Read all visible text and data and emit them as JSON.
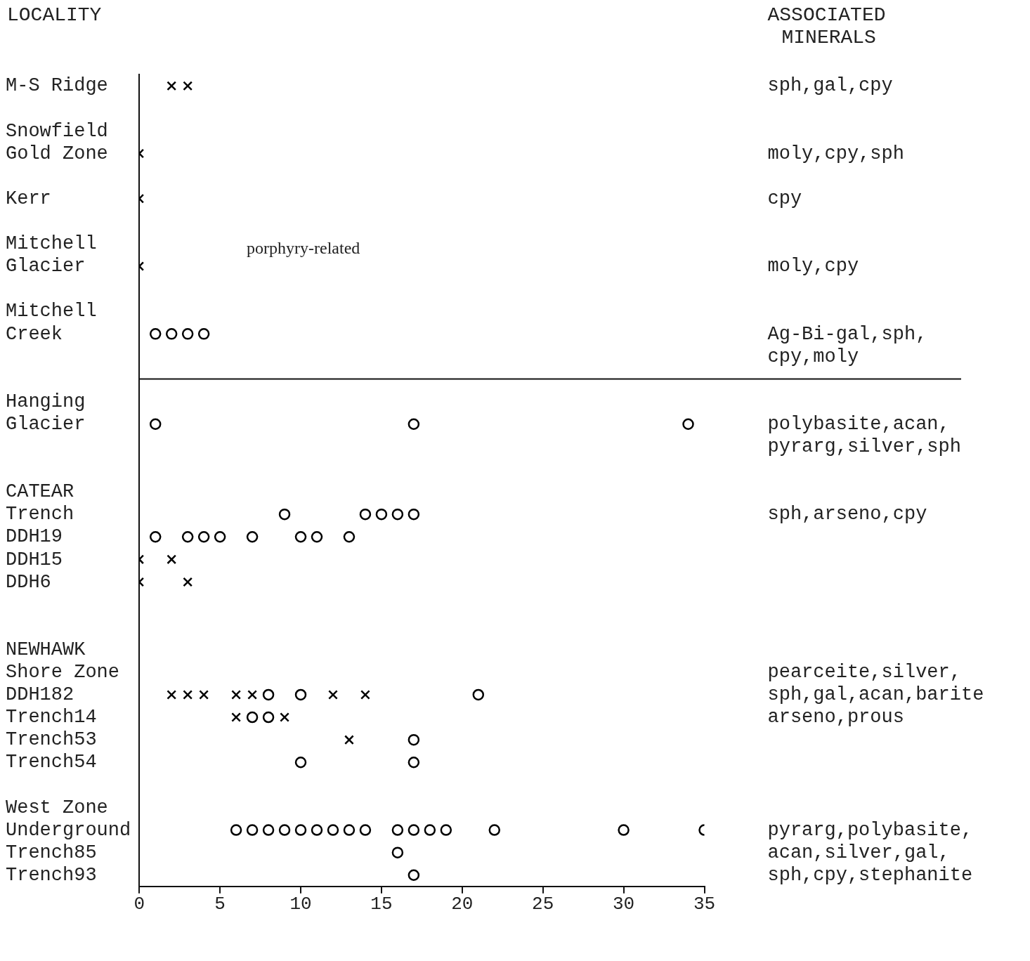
{
  "chart_data": {
    "type": "scatter",
    "orientation": "horizontal",
    "ylabel": "LOCALITY",
    "y2label": "ASSOCIATED MINERALS",
    "xlim": [
      0,
      35
    ],
    "xticks": [
      0,
      5,
      10,
      15,
      20,
      25,
      30,
      35
    ],
    "categories": [
      "M-S Ridge",
      null,
      "Snowfield",
      "Gold Zone",
      null,
      "Kerr",
      null,
      "Mitchell",
      "Glacier",
      null,
      "Mitchell",
      "Creek",
      null,
      null,
      "Hanging",
      "Glacier",
      null,
      null,
      "CATEAR",
      "Trench",
      "DDH19",
      "DDH15",
      "DDH6",
      null,
      null,
      "NEWHAWK",
      "Shore Zone",
      "DDH182",
      "Trench14",
      "Trench53",
      "Trench54",
      null,
      "West Zone",
      "Underground",
      "Trench85",
      "Trench93"
    ],
    "y2_categories": [
      "sph,gal,cpy",
      null,
      null,
      "moly,cpy,sph",
      null,
      "cpy",
      null,
      null,
      "moly,cpy",
      null,
      null,
      "Ag-Bi-gal,sph,",
      "cpy,moly",
      null,
      null,
      "polybasite,acan,",
      "pyrarg,silver,sph",
      null,
      null,
      "sph,arseno,cpy",
      null,
      null,
      null,
      null,
      null,
      null,
      "pearceite,silver,",
      "sph,gal,acan,barite",
      "arseno,prous",
      null,
      null,
      null,
      null,
      "pyrarg,polybasite,",
      "acan,silver,gal,",
      "sph,cpy,stephanite"
    ],
    "grid": false,
    "legend": false,
    "annotations": [
      "porphyry-related"
    ],
    "series": [
      {
        "color": "#000000",
        "marker": "cross",
        "values": [
          2,
          null,
          null,
          0,
          null,
          0,
          null,
          null,
          0,
          null,
          null,
          null,
          null,
          null,
          null,
          null,
          null,
          null,
          null,
          null,
          null,
          0,
          0,
          null,
          null,
          null,
          null,
          2,
          6,
          13,
          null,
          null,
          null,
          null,
          null,
          null
        ]
      },
      {
        "color": "#000000",
        "marker": "cross",
        "values": [
          3,
          null,
          null,
          null,
          null,
          null,
          null,
          null,
          null,
          null,
          null,
          null,
          null,
          null,
          null,
          null,
          null,
          null,
          null,
          null,
          null,
          2,
          3,
          null,
          null,
          null,
          null,
          3,
          9,
          null,
          null,
          null,
          null,
          null,
          null,
          null
        ]
      },
      {
        "color": "#000000",
        "marker": "cross",
        "values": [
          null,
          null,
          null,
          null,
          null,
          null,
          null,
          null,
          null,
          null,
          null,
          null,
          null,
          null,
          null,
          null,
          null,
          null,
          null,
          null,
          null,
          null,
          null,
          null,
          null,
          null,
          null,
          4,
          null,
          null,
          null,
          null,
          null,
          null,
          null,
          null
        ]
      },
      {
        "color": "#000000",
        "marker": "cross",
        "values": [
          null,
          null,
          null,
          null,
          null,
          null,
          null,
          null,
          null,
          null,
          null,
          null,
          null,
          null,
          null,
          null,
          null,
          null,
          null,
          null,
          null,
          null,
          null,
          null,
          null,
          null,
          null,
          6,
          null,
          null,
          null,
          null,
          null,
          null,
          null,
          null
        ]
      },
      {
        "color": "#000000",
        "marker": "cross",
        "values": [
          null,
          null,
          null,
          null,
          null,
          null,
          null,
          null,
          null,
          null,
          null,
          null,
          null,
          null,
          null,
          null,
          null,
          null,
          null,
          null,
          null,
          null,
          null,
          null,
          null,
          null,
          null,
          7,
          null,
          null,
          null,
          null,
          null,
          null,
          null,
          null
        ]
      },
      {
        "color": "#000000",
        "marker": "cross",
        "values": [
          null,
          null,
          null,
          null,
          null,
          null,
          null,
          null,
          null,
          null,
          null,
          null,
          null,
          null,
          null,
          null,
          null,
          null,
          null,
          null,
          null,
          null,
          null,
          null,
          null,
          null,
          null,
          12,
          null,
          null,
          null,
          null,
          null,
          null,
          null,
          null
        ]
      },
      {
        "color": "#000000",
        "marker": "cross",
        "values": [
          null,
          null,
          null,
          null,
          null,
          null,
          null,
          null,
          null,
          null,
          null,
          null,
          null,
          null,
          null,
          null,
          null,
          null,
          null,
          null,
          null,
          null,
          null,
          null,
          null,
          null,
          null,
          14,
          null,
          null,
          null,
          null,
          null,
          null,
          null,
          null
        ]
      },
      {
        "color": "#000000",
        "marker": "circle",
        "values": [
          null,
          null,
          null,
          null,
          null,
          null,
          null,
          null,
          null,
          null,
          null,
          1,
          null,
          null,
          null,
          1,
          null,
          null,
          null,
          9,
          1,
          null,
          null,
          null,
          null,
          null,
          null,
          8,
          7,
          17,
          10,
          null,
          null,
          6,
          16,
          17
        ]
      },
      {
        "color": "#000000",
        "marker": "circle",
        "values": [
          null,
          null,
          null,
          null,
          null,
          null,
          null,
          null,
          null,
          null,
          null,
          2,
          null,
          null,
          null,
          17,
          null,
          null,
          null,
          14,
          3,
          null,
          null,
          null,
          null,
          null,
          null,
          10,
          8,
          null,
          17,
          null,
          null,
          7,
          null,
          null
        ]
      },
      {
        "color": "#000000",
        "marker": "circle",
        "values": [
          null,
          null,
          null,
          null,
          null,
          null,
          null,
          null,
          null,
          null,
          null,
          3,
          null,
          null,
          null,
          34,
          null,
          null,
          null,
          15,
          4,
          null,
          null,
          null,
          null,
          null,
          null,
          21,
          null,
          null,
          null,
          null,
          null,
          8,
          null,
          null
        ]
      },
      {
        "color": "#000000",
        "marker": "circle",
        "values": [
          null,
          null,
          null,
          null,
          null,
          null,
          null,
          null,
          null,
          null,
          null,
          4,
          null,
          null,
          null,
          null,
          null,
          null,
          null,
          16,
          5,
          null,
          null,
          null,
          null,
          null,
          null,
          null,
          null,
          null,
          null,
          null,
          null,
          9,
          null,
          null
        ]
      },
      {
        "color": "#000000",
        "marker": "circle",
        "values": [
          null,
          null,
          null,
          null,
          null,
          null,
          null,
          null,
          null,
          null,
          null,
          null,
          null,
          null,
          null,
          null,
          null,
          null,
          null,
          17,
          7,
          null,
          null,
          null,
          null,
          null,
          null,
          null,
          null,
          null,
          null,
          null,
          null,
          10,
          null,
          null
        ]
      },
      {
        "color": "#000000",
        "marker": "circle",
        "values": [
          null,
          null,
          null,
          null,
          null,
          null,
          null,
          null,
          null,
          null,
          null,
          null,
          null,
          null,
          null,
          null,
          null,
          null,
          null,
          null,
          10,
          null,
          null,
          null,
          null,
          null,
          null,
          null,
          null,
          null,
          null,
          null,
          null,
          11,
          null,
          null
        ]
      },
      {
        "color": "#000000",
        "marker": "circle",
        "values": [
          null,
          null,
          null,
          null,
          null,
          null,
          null,
          null,
          null,
          null,
          null,
          null,
          null,
          null,
          null,
          null,
          null,
          null,
          null,
          null,
          11,
          null,
          null,
          null,
          null,
          null,
          null,
          null,
          null,
          null,
          null,
          null,
          null,
          12,
          null,
          null
        ]
      },
      {
        "color": "#000000",
        "marker": "circle",
        "values": [
          null,
          null,
          null,
          null,
          null,
          null,
          null,
          null,
          null,
          null,
          null,
          null,
          null,
          null,
          null,
          null,
          null,
          null,
          null,
          null,
          13,
          null,
          null,
          null,
          null,
          null,
          null,
          null,
          null,
          null,
          null,
          null,
          null,
          13,
          null,
          null
        ]
      },
      {
        "color": "#000000",
        "marker": "circle",
        "values": [
          null,
          null,
          null,
          null,
          null,
          null,
          null,
          null,
          null,
          null,
          null,
          null,
          null,
          null,
          null,
          null,
          null,
          null,
          null,
          null,
          null,
          null,
          null,
          null,
          null,
          null,
          null,
          null,
          null,
          null,
          null,
          null,
          null,
          14,
          null,
          null
        ]
      },
      {
        "color": "#000000",
        "marker": "circle",
        "values": [
          null,
          null,
          null,
          null,
          null,
          null,
          null,
          null,
          null,
          null,
          null,
          null,
          null,
          null,
          null,
          null,
          null,
          null,
          null,
          null,
          null,
          null,
          null,
          null,
          null,
          null,
          null,
          null,
          null,
          null,
          null,
          null,
          null,
          16,
          null,
          null
        ]
      },
      {
        "color": "#000000",
        "marker": "circle",
        "values": [
          null,
          null,
          null,
          null,
          null,
          null,
          null,
          null,
          null,
          null,
          null,
          null,
          null,
          null,
          null,
          null,
          null,
          null,
          null,
          null,
          null,
          null,
          null,
          null,
          null,
          null,
          null,
          null,
          null,
          null,
          null,
          null,
          null,
          17,
          null,
          null
        ]
      },
      {
        "color": "#000000",
        "marker": "circle",
        "values": [
          null,
          null,
          null,
          null,
          null,
          null,
          null,
          null,
          null,
          null,
          null,
          null,
          null,
          null,
          null,
          null,
          null,
          null,
          null,
          null,
          null,
          null,
          null,
          null,
          null,
          null,
          null,
          null,
          null,
          null,
          null,
          null,
          null,
          18,
          null,
          null
        ]
      },
      {
        "color": "#000000",
        "marker": "circle",
        "values": [
          null,
          null,
          null,
          null,
          null,
          null,
          null,
          null,
          null,
          null,
          null,
          null,
          null,
          null,
          null,
          null,
          null,
          null,
          null,
          null,
          null,
          null,
          null,
          null,
          null,
          null,
          null,
          null,
          null,
          null,
          null,
          null,
          null,
          19,
          null,
          null
        ]
      },
      {
        "color": "#000000",
        "marker": "circle",
        "values": [
          null,
          null,
          null,
          null,
          null,
          null,
          null,
          null,
          null,
          null,
          null,
          null,
          null,
          null,
          null,
          null,
          null,
          null,
          null,
          null,
          null,
          null,
          null,
          null,
          null,
          null,
          null,
          null,
          null,
          null,
          null,
          null,
          null,
          22,
          null,
          null
        ]
      },
      {
        "color": "#000000",
        "marker": "circle",
        "values": [
          null,
          null,
          null,
          null,
          null,
          null,
          null,
          null,
          null,
          null,
          null,
          null,
          null,
          null,
          null,
          null,
          null,
          null,
          null,
          null,
          null,
          null,
          null,
          null,
          null,
          null,
          null,
          null,
          null,
          null,
          null,
          null,
          null,
          30,
          null,
          null
        ]
      },
      {
        "color": "#000000",
        "marker": "circle",
        "values": [
          null,
          null,
          null,
          null,
          null,
          null,
          null,
          null,
          null,
          null,
          null,
          null,
          null,
          null,
          null,
          null,
          null,
          null,
          null,
          null,
          null,
          null,
          null,
          null,
          null,
          null,
          null,
          null,
          null,
          null,
          null,
          null,
          null,
          35,
          null,
          null
        ]
      }
    ]
  }
}
